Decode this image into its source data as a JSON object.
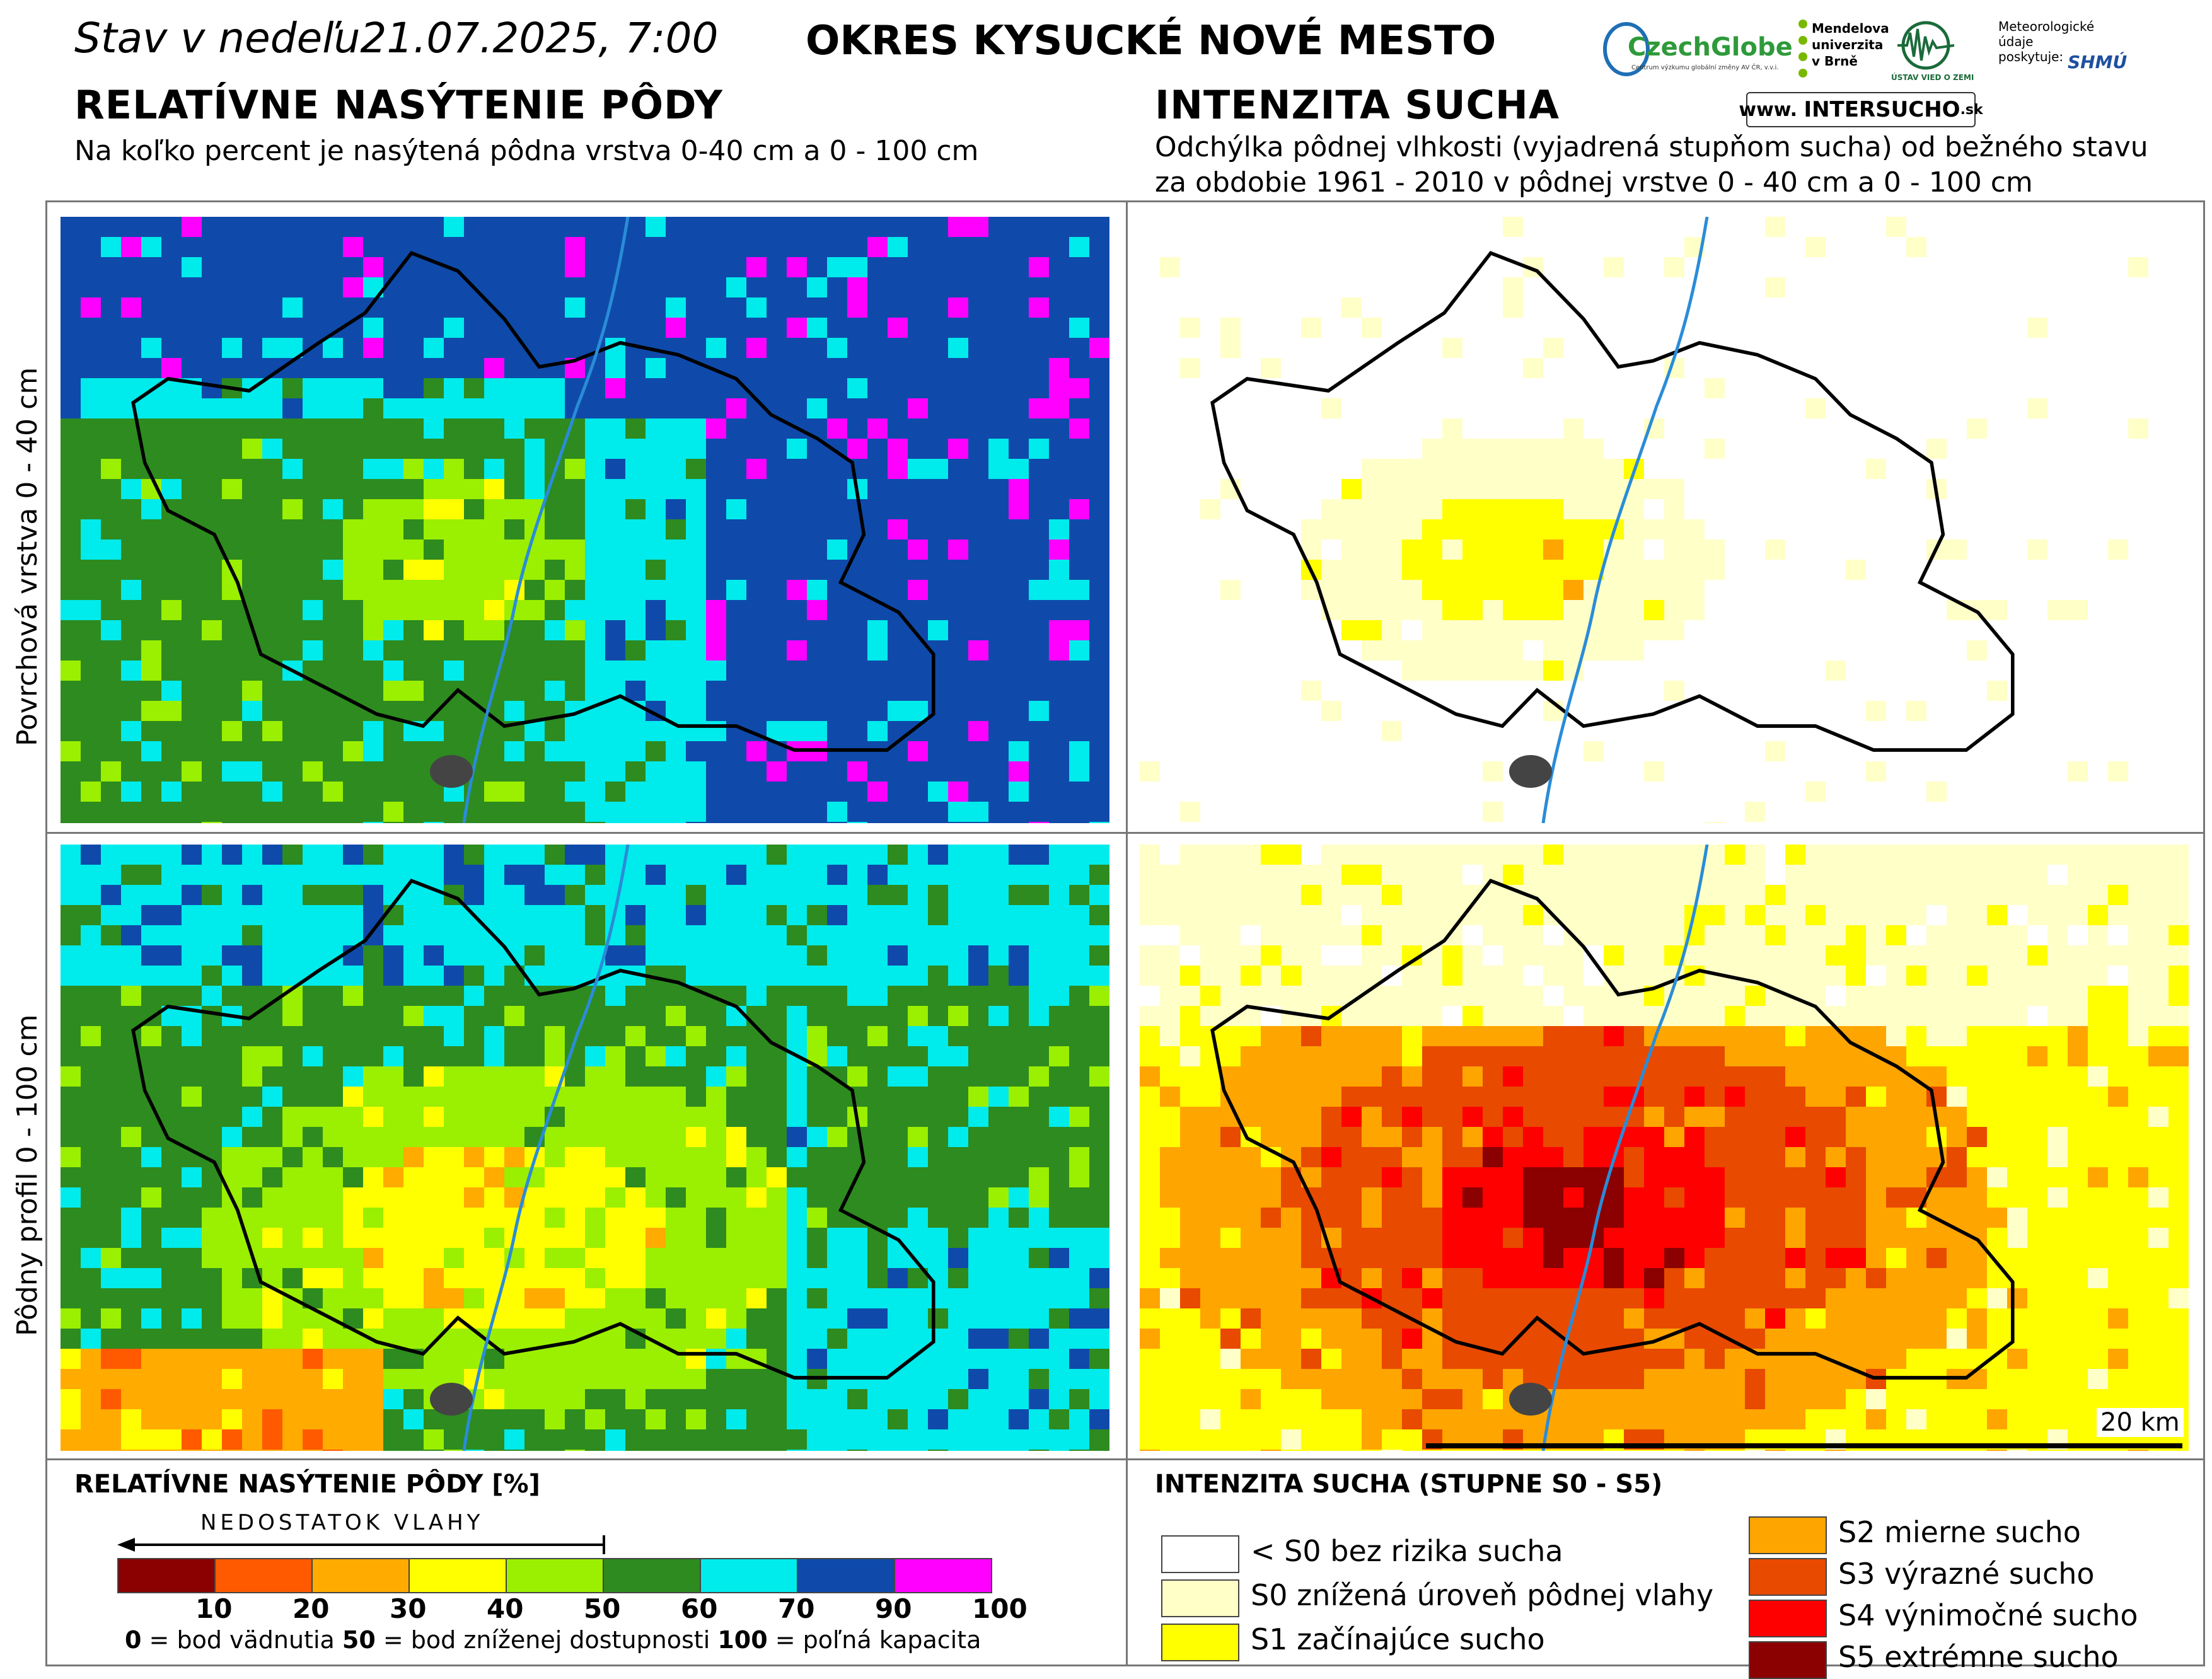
{
  "header": {
    "status": "Stav v nedeľu21.07.2025, 7:00",
    "district": "OKRES  KYSUCKÉ NOVÉ MESTO"
  },
  "left_section": {
    "title": "RELATÍVNE NASÝTENIE PÔDY",
    "subtitle": "Na koľko percent je nasýtená pôdna vrstva 0-40 cm a 0 - 100 cm"
  },
  "right_section": {
    "title": "INTENZITA SUCHA",
    "subtitle_line1": "Odchýlka pôdnej vlhkosti (vyjadrená stupňom sucha) od bežného stavu",
    "subtitle_line2": "za obdobie 1961 - 2010 v pôdnej vrstve 0 - 40 cm a 0 - 100 cm"
  },
  "logos": {
    "czechglobe": "CzechGlobe",
    "czechglobe_sub": "Centrum výzkumu globální změny AV ČR, v.v.i.",
    "mendelu": "Mendelova univerzita v Brně",
    "uvz": "ÚSTAV VIED O ZEMI",
    "meteo": "Meteorologické údaje poskytuje:",
    "shmu": "SHMÚ",
    "intersucho_prefix": "www.",
    "intersucho_main": "INTERSUCHO",
    "intersucho_suffix": ".sk"
  },
  "row_labels": {
    "top": "Povrchová vrstva 0 - 40 cm",
    "bottom": "Pôdny profil 0 - 100 cm"
  },
  "scale_bar": "20 km",
  "legend_saturation": {
    "title": "RELATÍVNE NASÝTENIE PÔDY [%]",
    "arrow_label": "NEDOSTATOK VLAHY",
    "colors": [
      "#8b0000",
      "#ff5a00",
      "#ffab00",
      "#ffff00",
      "#9bef00",
      "#2e8b1f",
      "#00ebeb",
      "#0f4aaa",
      "#ff00ff"
    ],
    "ticks": [
      "10",
      "20",
      "30",
      "40",
      "50",
      "60",
      "70",
      "90",
      "100"
    ],
    "footnote_0": "0",
    "footnote_0_text": " = bod vädnutia ",
    "footnote_50": "50",
    "footnote_50_text": " = bod zníženej dostupnosti ",
    "footnote_100": "100",
    "footnote_100_text": " = poľná kapacita"
  },
  "legend_drought": {
    "title": "INTENZITA SUCHA (STUPNE S0 - S5)",
    "items": [
      {
        "label": "< S0 bez rizika sucha",
        "color": "#ffffff"
      },
      {
        "label": "S0 znížená úroveň pôdnej vlahy",
        "color": "#ffffc8"
      },
      {
        "label": "S1 začínajúce sucho",
        "color": "#ffff00"
      },
      {
        "label": "S2 mierne sucho",
        "color": "#ffa500"
      },
      {
        "label": "S3 výrazné sucho",
        "color": "#e84a00"
      },
      {
        "label": "S4 výnimočné sucho",
        "color": "#ff0000"
      },
      {
        "label": "S5 extrémne sucho",
        "color": "#8b0000"
      }
    ]
  }
}
